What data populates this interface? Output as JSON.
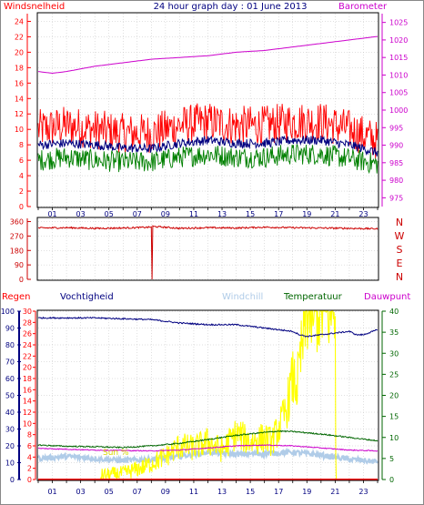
{
  "title": "24 hour graph day : 01 June 2013",
  "colors": {
    "wind_gust": "#ff0000",
    "wind_avg": "#000080",
    "wind_low": "#008000",
    "barometer": "#cc00cc",
    "direction": "#cc0000",
    "rain": "#ff0000",
    "humidity": "#000080",
    "windchill": "#b0cce8",
    "temperature": "#006600",
    "dewpoint": "#cc00cc",
    "solar": "#ffff00",
    "grid": "#c0c0c0"
  },
  "x_ticks": [
    "01",
    "03",
    "05",
    "07",
    "09",
    "11",
    "13",
    "15",
    "17",
    "19",
    "21",
    "23"
  ],
  "chart_data": [
    {
      "type": "line",
      "labels": {
        "left": "Windsnelheid",
        "right": "Barometer"
      },
      "y_left": {
        "ticks": [
          0,
          2,
          4,
          6,
          8,
          10,
          12,
          14,
          16,
          18,
          20,
          22,
          24
        ],
        "range": [
          0,
          25
        ]
      },
      "y_right": {
        "ticks": [
          975,
          980,
          985,
          990,
          995,
          1000,
          1005,
          1010,
          1015,
          1020,
          1025
        ],
        "range": [
          972.5,
          1027.5
        ]
      },
      "series": [
        {
          "key": "gust",
          "axis": "left",
          "hours": [
            0,
            2,
            4,
            6,
            8,
            10,
            12,
            14,
            16,
            18,
            20,
            22,
            24
          ],
          "values": [
            10,
            10.5,
            10,
            9.5,
            9.5,
            10.5,
            11,
            10.5,
            10.5,
            11,
            11,
            10,
            8.5
          ]
        },
        {
          "key": "avg",
          "axis": "left",
          "hours": [
            0,
            2,
            4,
            6,
            8,
            10,
            12,
            14,
            16,
            18,
            20,
            22,
            24
          ],
          "values": [
            8,
            8.2,
            8,
            7.6,
            7.5,
            8.2,
            8.6,
            8.2,
            8.2,
            8.6,
            8.6,
            8,
            7
          ]
        },
        {
          "key": "low",
          "axis": "left",
          "hours": [
            0,
            2,
            4,
            6,
            8,
            10,
            12,
            14,
            16,
            18,
            20,
            22,
            24
          ],
          "values": [
            6,
            6.4,
            6,
            5.8,
            5.8,
            6.4,
            6.8,
            6.4,
            6.4,
            6.8,
            6.8,
            6.2,
            5.5
          ]
        },
        {
          "key": "barometer",
          "axis": "right",
          "hours": [
            0,
            1,
            2,
            4,
            6,
            8,
            10,
            12,
            14,
            16,
            18,
            20,
            22,
            24
          ],
          "values": [
            1011,
            1010.5,
            1011,
            1012.5,
            1013.5,
            1014.5,
            1015,
            1015.5,
            1016.5,
            1017,
            1018,
            1019,
            1020,
            1021
          ]
        }
      ]
    },
    {
      "type": "line",
      "direction_labels": [
        "N",
        "W",
        "S",
        "E",
        "N"
      ],
      "y_left": {
        "ticks": [
          0,
          90,
          180,
          270,
          360
        ],
        "range": [
          0,
          380
        ]
      },
      "series": [
        {
          "key": "direction",
          "hours": [
            0,
            2,
            4,
            6,
            7.9,
            8.1,
            10,
            12,
            14,
            16,
            18,
            20,
            22,
            24
          ],
          "values": [
            320,
            322,
            318,
            320,
            325,
            330,
            318,
            322,
            320,
            325,
            322,
            320,
            318,
            315
          ]
        }
      ],
      "spike": {
        "hour": 8.05,
        "value": 0
      }
    },
    {
      "type": "line",
      "labels": {
        "rain": "Regen",
        "humidity": "Vochtigheid",
        "windchill": "Windchill",
        "temperature": "Temperatuur",
        "dewpoint": "Dauwpunt"
      },
      "y_humidity": {
        "ticks": [
          0,
          10,
          20,
          30,
          40,
          50,
          60,
          70,
          80,
          90,
          100
        ],
        "range": [
          0,
          100
        ]
      },
      "y_rain": {
        "ticks": [
          0,
          2,
          4,
          6,
          8,
          10,
          12,
          14,
          16,
          18,
          20,
          22,
          24,
          26,
          28,
          30
        ],
        "range": [
          0,
          30
        ]
      },
      "y_temp": {
        "ticks": [
          0,
          5,
          10,
          15,
          20,
          25,
          30,
          35,
          40
        ],
        "range": [
          0,
          40
        ]
      },
      "annotation": "Sun %",
      "series": [
        {
          "key": "humidity",
          "axis": "humidity",
          "hours": [
            0,
            4,
            8,
            9,
            10,
            12,
            14,
            16,
            18,
            18.5,
            19,
            20,
            21,
            22,
            22.5,
            23,
            24
          ],
          "values": [
            96,
            96,
            95,
            94,
            93,
            92,
            92,
            90,
            88,
            86,
            85,
            86,
            87,
            88,
            86,
            86,
            89
          ]
        },
        {
          "key": "temperature",
          "axis": "temp",
          "hours": [
            0,
            2,
            4,
            6,
            8,
            10,
            12,
            14,
            16,
            17,
            18,
            20,
            22,
            24
          ],
          "values": [
            8.2,
            7.9,
            7.8,
            7.6,
            8,
            8.6,
            9.5,
            10.5,
            11.2,
            11.5,
            11.4,
            10.8,
            10,
            9.2
          ]
        },
        {
          "key": "dewpoint",
          "axis": "temp",
          "hours": [
            0,
            4,
            8,
            10,
            12,
            14,
            16,
            18,
            20,
            22,
            24
          ],
          "values": [
            7.4,
            7,
            6.8,
            7,
            7.5,
            8,
            8.2,
            8,
            7.5,
            7,
            6.8
          ]
        },
        {
          "key": "windchill",
          "axis": "temp",
          "hours": [
            0,
            2,
            4,
            6,
            8,
            10,
            12,
            14,
            16,
            18,
            20,
            22,
            24
          ],
          "values": [
            5,
            5.5,
            5,
            4.5,
            4.8,
            5.5,
            6.5,
            6,
            6.2,
            6.5,
            5.8,
            4.8,
            4.2
          ]
        },
        {
          "key": "solar",
          "axis": "temp",
          "hours": [
            0,
            4.4,
            4.5,
            6,
            7.5,
            9,
            10,
            11,
            12,
            13,
            14,
            15,
            16,
            16.5,
            17,
            17.5,
            18,
            18.3,
            18.6,
            19,
            19.5,
            20,
            20.5,
            20.8,
            21,
            21.05,
            24
          ],
          "values": [
            0,
            0,
            1,
            1.5,
            3,
            5.5,
            8,
            7.5,
            9,
            7,
            11,
            9,
            10,
            9,
            12,
            16,
            24,
            22,
            30,
            40,
            40,
            40,
            40,
            40,
            40,
            0,
            0
          ]
        },
        {
          "key": "rain",
          "axis": "rain",
          "hours": [
            0,
            24
          ],
          "values": [
            0,
            0
          ]
        }
      ]
    }
  ]
}
